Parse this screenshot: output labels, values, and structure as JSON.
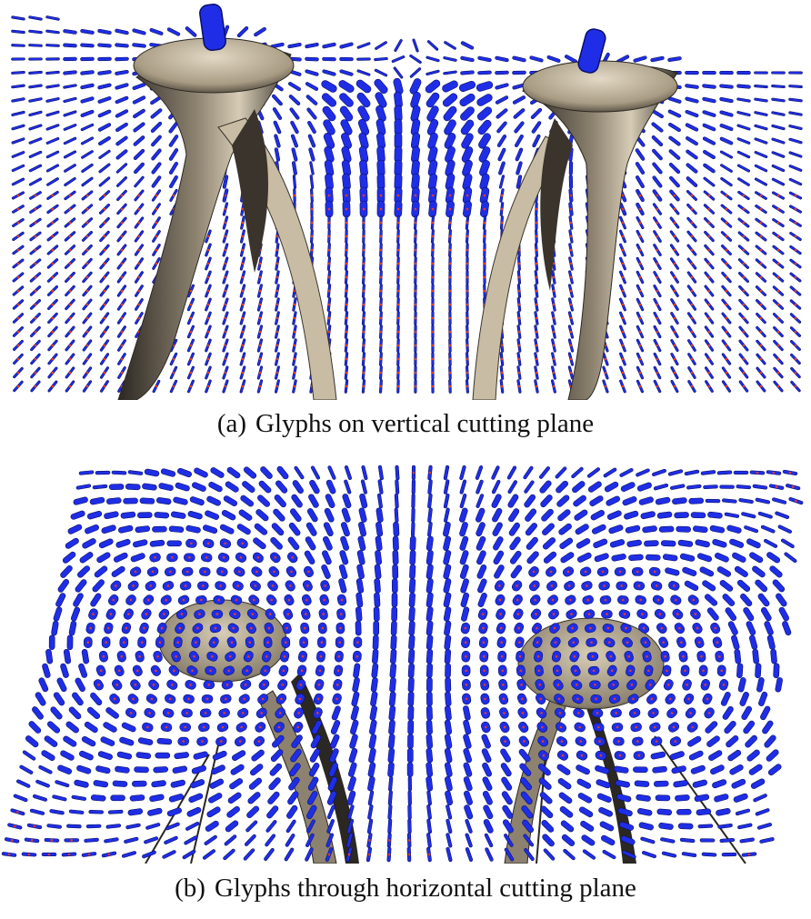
{
  "figure": {
    "panels": [
      {
        "id": "a",
        "label": "(a)",
        "caption": "Glyphs on vertical cutting plane"
      },
      {
        "id": "b",
        "label": "(b)",
        "caption": "Glyphs through horizontal cutting plane"
      }
    ],
    "colors": {
      "glyph": "#1f2ee6",
      "glyph_edge": "#0a0f6a",
      "glyph_center": "#e23c28",
      "surface_light": "#c8bca4",
      "surface_dark": "#2b2722",
      "background": "#ffffff"
    }
  }
}
